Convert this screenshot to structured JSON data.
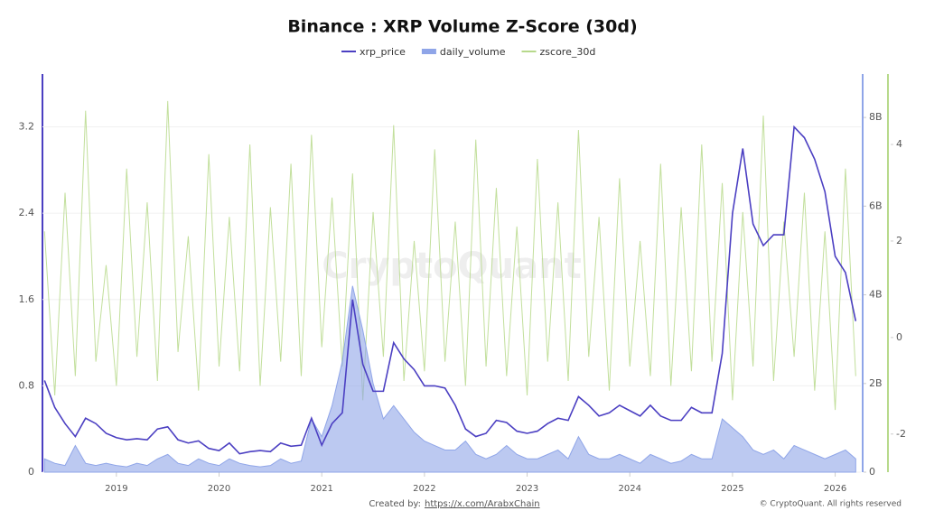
{
  "chart_data": {
    "type": "line",
    "title": "Binance : XRP Volume Z-Score (30d)",
    "x": [
      2018.3,
      2018.4,
      2018.5,
      2018.6,
      2018.7,
      2018.8,
      2018.9,
      2019.0,
      2019.1,
      2019.2,
      2019.3,
      2019.4,
      2019.5,
      2019.6,
      2019.7,
      2019.8,
      2019.9,
      2020.0,
      2020.1,
      2020.2,
      2020.3,
      2020.4,
      2020.5,
      2020.6,
      2020.7,
      2020.8,
      2020.9,
      2021.0,
      2021.1,
      2021.2,
      2021.3,
      2021.4,
      2021.5,
      2021.6,
      2021.7,
      2021.8,
      2021.9,
      2022.0,
      2022.1,
      2022.2,
      2022.3,
      2022.4,
      2022.5,
      2022.6,
      2022.7,
      2022.8,
      2022.9,
      2023.0,
      2023.1,
      2023.2,
      2023.3,
      2023.4,
      2023.5,
      2023.6,
      2023.7,
      2023.8,
      2023.9,
      2024.0,
      2024.1,
      2024.2,
      2024.3,
      2024.4,
      2024.5,
      2024.6,
      2024.7,
      2024.8,
      2024.9,
      2025.0,
      2025.1,
      2025.2,
      2025.3,
      2025.4,
      2025.5,
      2025.6,
      2025.7,
      2025.8,
      2025.9,
      2026.0,
      2026.1,
      2026.2
    ],
    "xlim": [
      2018.28,
      2026.25
    ],
    "xticks": [
      2019,
      2020,
      2021,
      2022,
      2023,
      2024,
      2025,
      2026
    ],
    "series": [
      {
        "name": "xrp_price",
        "color": "#4b3fc2",
        "axis": "y",
        "values": [
          0.85,
          0.6,
          0.45,
          0.33,
          0.5,
          0.45,
          0.36,
          0.32,
          0.3,
          0.31,
          0.3,
          0.4,
          0.42,
          0.3,
          0.27,
          0.29,
          0.22,
          0.2,
          0.27,
          0.17,
          0.19,
          0.2,
          0.19,
          0.27,
          0.24,
          0.25,
          0.5,
          0.25,
          0.45,
          0.55,
          1.6,
          1.0,
          0.75,
          0.75,
          1.2,
          1.05,
          0.95,
          0.8,
          0.8,
          0.78,
          0.62,
          0.4,
          0.33,
          0.36,
          0.48,
          0.46,
          0.38,
          0.36,
          0.38,
          0.45,
          0.5,
          0.48,
          0.7,
          0.62,
          0.52,
          0.55,
          0.62,
          0.57,
          0.52,
          0.62,
          0.52,
          0.48,
          0.48,
          0.6,
          0.55,
          0.55,
          1.1,
          2.4,
          3.0,
          2.3,
          2.1,
          2.2,
          2.2,
          3.2,
          3.1,
          2.9,
          2.6,
          2.0,
          1.85,
          1.4
        ]
      },
      {
        "name": "daily_volume",
        "color": "#8fa5e8",
        "axis": "y2",
        "values": [
          300000000.0,
          200000000.0,
          150000000.0,
          600000000.0,
          200000000.0,
          150000000.0,
          200000000.0,
          150000000.0,
          120000000.0,
          200000000.0,
          150000000.0,
          300000000.0,
          400000000.0,
          200000000.0,
          150000000.0,
          300000000.0,
          200000000.0,
          150000000.0,
          300000000.0,
          200000000.0,
          150000000.0,
          120000000.0,
          150000000.0,
          300000000.0,
          200000000.0,
          250000000.0,
          1200000000.0,
          800000000.0,
          1500000000.0,
          2500000000.0,
          4200000000.0,
          3200000000.0,
          2000000000.0,
          1200000000.0,
          1500000000.0,
          1200000000.0,
          900000000.0,
          700000000.0,
          600000000.0,
          500000000.0,
          500000000.0,
          700000000.0,
          400000000.0,
          300000000.0,
          400000000.0,
          600000000.0,
          400000000.0,
          300000000.0,
          300000000.0,
          400000000.0,
          500000000.0,
          300000000.0,
          800000000.0,
          400000000.0,
          300000000.0,
          300000000.0,
          400000000.0,
          300000000.0,
          200000000.0,
          400000000.0,
          300000000.0,
          200000000.0,
          250000000.0,
          400000000.0,
          300000000.0,
          300000000.0,
          1200000000.0,
          1000000000.0,
          800000000.0,
          500000000.0,
          400000000.0,
          500000000.0,
          300000000.0,
          600000000.0,
          500000000.0,
          400000000.0,
          300000000.0,
          400000000.0,
          500000000.0,
          300000000.0
        ]
      },
      {
        "name": "zscore_30d",
        "color": "#b7d98b",
        "axis": "y3",
        "values": [
          2.2,
          -1.2,
          3.0,
          -0.8,
          4.7,
          -0.5,
          1.5,
          -1.0,
          3.5,
          -0.4,
          2.8,
          -0.9,
          4.9,
          -0.3,
          2.1,
          -1.1,
          3.8,
          -0.6,
          2.5,
          -0.7,
          4.0,
          -1.0,
          2.7,
          -0.5,
          3.6,
          -0.8,
          4.2,
          -0.2,
          2.9,
          -0.6,
          3.4,
          -1.3,
          2.6,
          -0.4,
          4.4,
          -0.9,
          2.0,
          -0.7,
          3.9,
          -0.5,
          2.4,
          -1.0,
          4.1,
          -0.6,
          3.1,
          -0.8,
          2.3,
          -1.2,
          3.7,
          -0.5,
          2.8,
          -0.9,
          4.3,
          -0.4,
          2.5,
          -1.1,
          3.3,
          -0.6,
          2.0,
          -0.8,
          3.6,
          -1.0,
          2.7,
          -0.7,
          4.0,
          -0.5,
          3.2,
          -1.3,
          2.6,
          -0.6,
          4.6,
          -0.9,
          2.4,
          -0.4,
          3.0,
          -1.1,
          2.2,
          -1.5,
          3.5,
          -0.8
        ]
      }
    ],
    "ylim": [
      0,
      3.69
    ],
    "yticks": [
      0,
      0.8,
      1.6,
      2.4,
      3.2
    ],
    "y2lim": [
      0,
      8980000000
    ],
    "y2ticks": [
      0,
      {
        "value": 2000000000,
        "label": "2B"
      },
      {
        "value": 4000000000,
        "label": "4B"
      },
      {
        "value": 6000000000,
        "label": "6B"
      },
      {
        "value": 8000000000,
        "label": "8B"
      }
    ],
    "y3lim": [
      -2.79,
      5.46
    ],
    "y3ticks": [
      -2,
      0,
      2,
      4
    ],
    "legend": "top"
  },
  "watermark": "CryptoQuant",
  "footer": {
    "created_by": "Created by:",
    "link": "https://x.com/ArabxChain",
    "copyright": "© CryptoQuant. All rights reserved"
  }
}
